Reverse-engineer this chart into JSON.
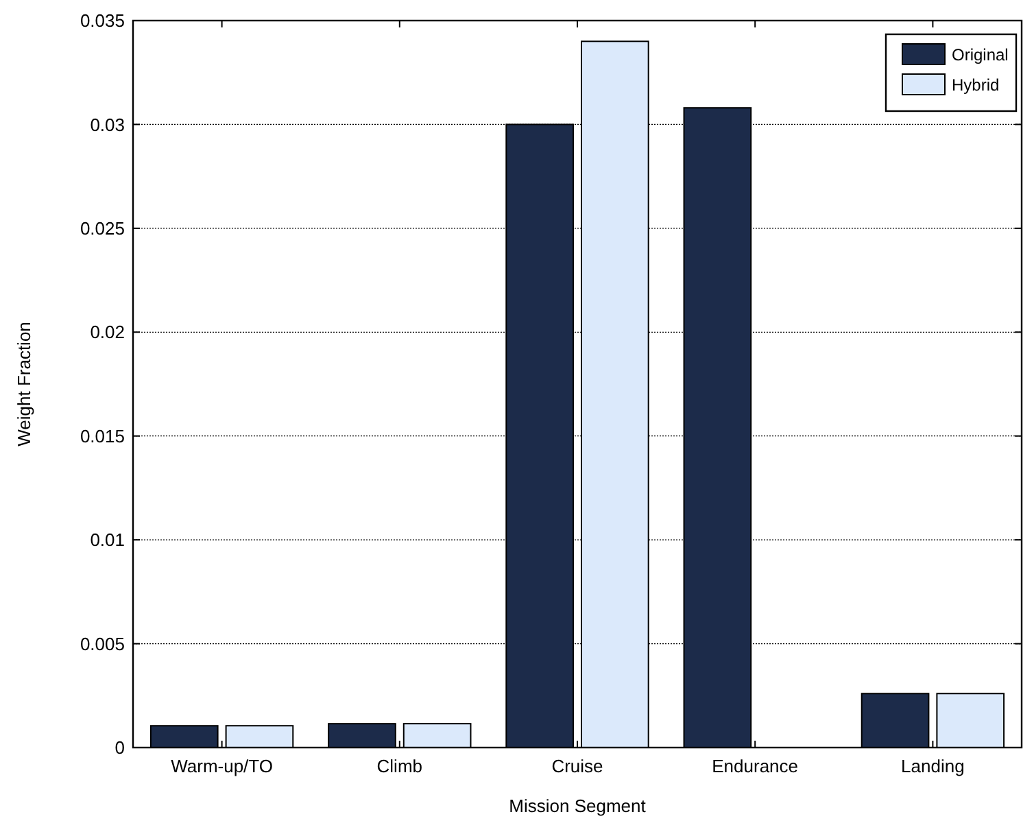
{
  "chart_data": {
    "type": "bar",
    "xlabel": "Mission Segment",
    "ylabel": "Weight Fraction",
    "categories": [
      "Warm-up/TO",
      "Climb",
      "Cruise",
      "Endurance",
      "Landing"
    ],
    "series": [
      {
        "name": "Original",
        "color": "#1c2b4a",
        "values": [
          0.00105,
          0.00115,
          0.03,
          0.0308,
          0.0026
        ]
      },
      {
        "name": "Hybrid",
        "color": "#dbe9fb",
        "values": [
          0.00105,
          0.00115,
          0.034,
          null,
          0.0026
        ]
      }
    ],
    "ylim": [
      0,
      0.035
    ],
    "yticks": [
      0,
      0.005,
      0.01,
      0.015,
      0.02,
      0.025,
      0.03,
      0.035
    ],
    "grid": "y",
    "legend": "top right"
  }
}
